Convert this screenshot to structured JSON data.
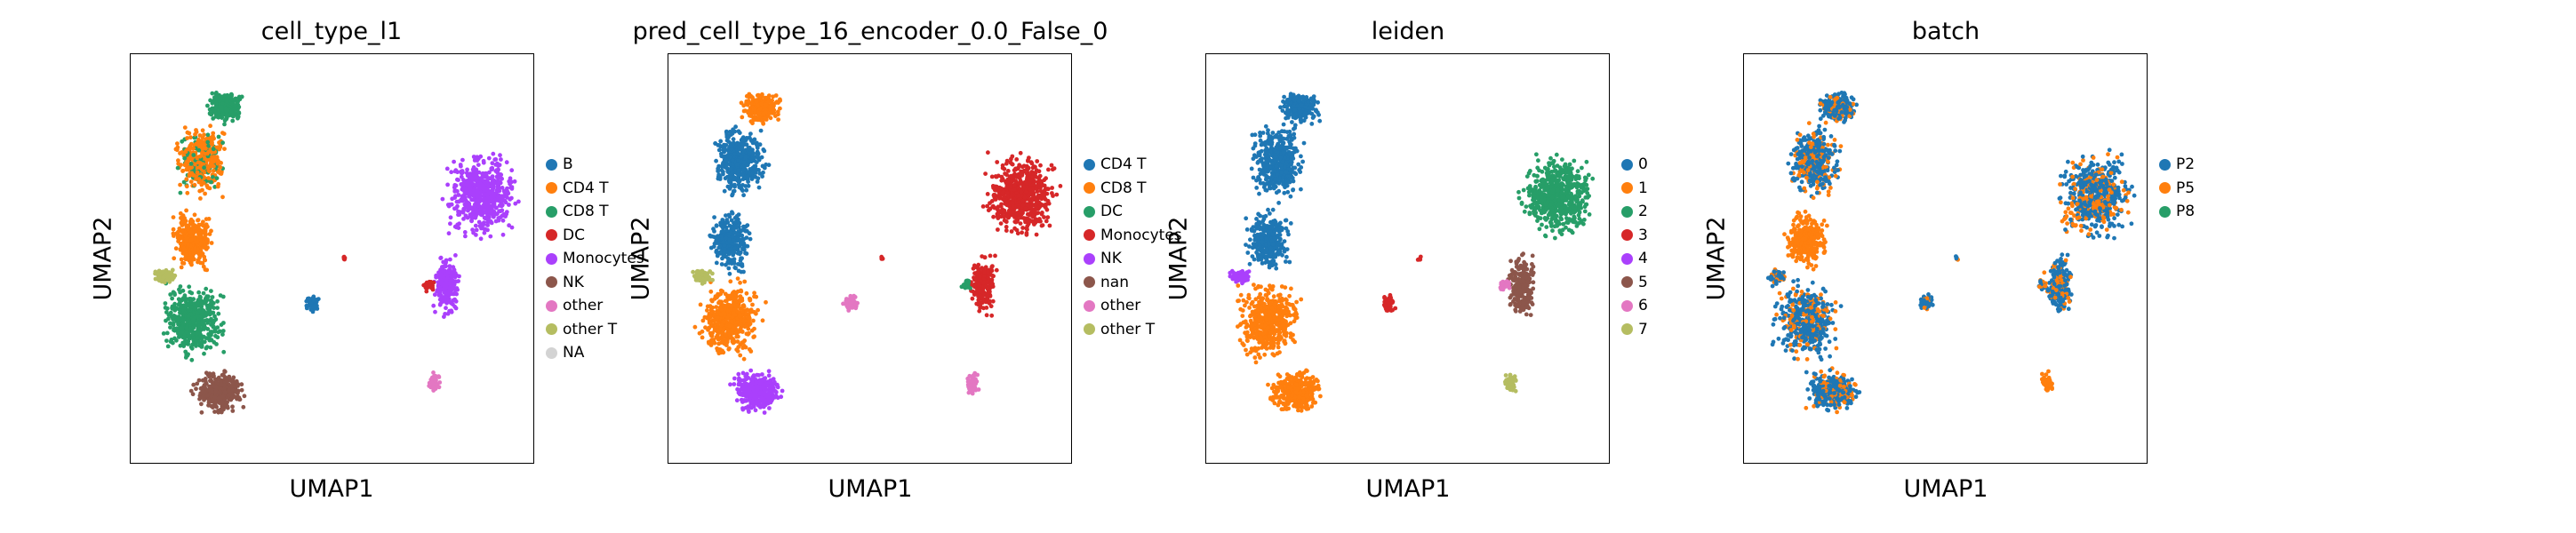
{
  "chart_data": [
    {
      "type": "scatter",
      "title": "cell_type_l1",
      "xlabel": "UMAP1",
      "ylabel": "UMAP2",
      "legend_position": "right",
      "legend": [
        {
          "label": "B",
          "color": "#1f77b4"
        },
        {
          "label": "CD4 T",
          "color": "#ff7f0e"
        },
        {
          "label": "CD8 T",
          "color": "#279e68"
        },
        {
          "label": "DC",
          "color": "#d62728"
        },
        {
          "label": "Monocytes",
          "color": "#aa40fc"
        },
        {
          "label": "NK",
          "color": "#8c564b"
        },
        {
          "label": "other",
          "color": "#e377c2"
        },
        {
          "label": "other T",
          "color": "#b5bd61"
        },
        {
          "label": "NA",
          "color": "#d3d3d3"
        }
      ]
    },
    {
      "type": "scatter",
      "title": "pred_cell_type_16_encoder_0.0_False_0",
      "xlabel": "UMAP1",
      "ylabel": "UMAP2",
      "legend_position": "right",
      "legend": [
        {
          "label": "CD4 T",
          "color": "#1f77b4"
        },
        {
          "label": "CD8 T",
          "color": "#ff7f0e"
        },
        {
          "label": "DC",
          "color": "#279e68"
        },
        {
          "label": "Monocytes",
          "color": "#d62728"
        },
        {
          "label": "NK",
          "color": "#aa40fc"
        },
        {
          "label": "nan",
          "color": "#8c564b"
        },
        {
          "label": "other",
          "color": "#e377c2"
        },
        {
          "label": "other T",
          "color": "#b5bd61"
        }
      ]
    },
    {
      "type": "scatter",
      "title": "leiden",
      "xlabel": "UMAP1",
      "ylabel": "UMAP2",
      "legend_position": "right",
      "legend": [
        {
          "label": "0",
          "color": "#1f77b4"
        },
        {
          "label": "1",
          "color": "#ff7f0e"
        },
        {
          "label": "2",
          "color": "#279e68"
        },
        {
          "label": "3",
          "color": "#d62728"
        },
        {
          "label": "4",
          "color": "#aa40fc"
        },
        {
          "label": "5",
          "color": "#8c564b"
        },
        {
          "label": "6",
          "color": "#e377c2"
        },
        {
          "label": "7",
          "color": "#b5bd61"
        }
      ]
    },
    {
      "type": "scatter",
      "title": "batch",
      "xlabel": "UMAP1",
      "ylabel": "UMAP2",
      "legend_position": "right",
      "legend": [
        {
          "label": "P2",
          "color": "#1f77b4"
        },
        {
          "label": "P5",
          "color": "#ff7f0e"
        },
        {
          "label": "P8",
          "color": "#279e68"
        }
      ]
    }
  ]
}
